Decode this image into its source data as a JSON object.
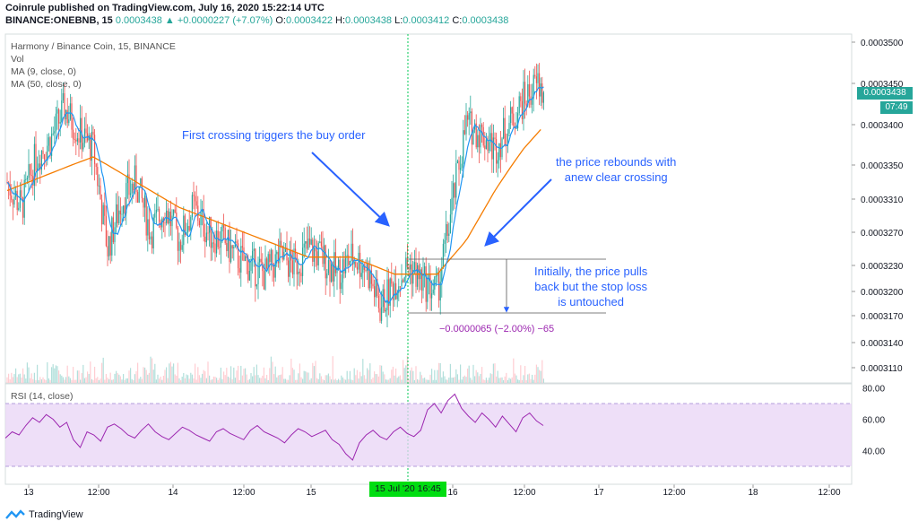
{
  "header": {
    "line1": "Coinrule published on TradingView.com, July 16, 2020 15:22:14 UTC",
    "symbol": "BINANCE:ONEBNB, 15",
    "last": "0.0003438",
    "change": "▲ +0.0000227 (+7.07%)",
    "o_label": "O:",
    "o_value": "0.0003422",
    "h_label": "H:",
    "h_value": "0.0003438",
    "l_label": "L:",
    "l_value": "0.0003412",
    "c_label": "C:",
    "c_value": "0.0003438"
  },
  "legend": {
    "title": "Harmony / Binance Coin, 15, BINANCE",
    "vol": "Vol",
    "ma9": "MA (9, close, 0)",
    "ma50": "MA (50, close, 0)",
    "rsi": "RSI (14, close)"
  },
  "annotations": {
    "buy": "First crossing triggers the buy order",
    "rebound_l1": "the price rebounds with",
    "rebound_l2": "anew clear crossing",
    "pull_l1": "Initially, the price pulls",
    "pull_l2": "back but the stop loss",
    "pull_l3": "is untouched",
    "measure": "−0.0000065 (−2.00%) −65"
  },
  "price_tags": {
    "last_price": "0.0003438",
    "countdown": "07:49"
  },
  "date_tag": "15 Jul '20   16:45",
  "brand": "TradingView",
  "colors": {
    "up": "#26a69a",
    "down": "#ef5350",
    "ma9": "#2196f3",
    "ma50": "#f57c00",
    "rsi": "#9c27b0",
    "annotation": "#2962ff",
    "crosshair": "#00c853"
  },
  "chart_data": [
    {
      "type": "candlestick",
      "title": "Harmony / Binance Coin, 15, BINANCE",
      "y_ticks": [
        "0.0003500",
        "0.0003450",
        "0.0003400",
        "0.0003350",
        "0.0003310",
        "0.0003270",
        "0.0003230",
        "0.0003200",
        "0.0003170",
        "0.0003140",
        "0.0003110"
      ],
      "ylim": [
        0.00031,
        0.00035
      ],
      "x_ticks": [
        "13",
        "12:00",
        "14",
        "12:00",
        "15",
        "12:00",
        "16",
        "12:00",
        "17",
        "12:00",
        "18",
        "12:00"
      ],
      "close_path": [
        [
          0,
          0.000333
        ],
        [
          10,
          0.00033
        ],
        [
          20,
          0.000336
        ],
        [
          30,
          0.000338
        ],
        [
          40,
          0.000342
        ],
        [
          50,
          0.000339
        ],
        [
          60,
          0.000337
        ],
        [
          70,
          0.000325
        ],
        [
          80,
          0.000331
        ],
        [
          90,
          0.000333
        ],
        [
          100,
          0.000327
        ],
        [
          110,
          0.00033
        ],
        [
          120,
          0.000326
        ],
        [
          130,
          0.00033
        ],
        [
          140,
          0.000327
        ],
        [
          150,
          0.000326
        ],
        [
          160,
          0.000324
        ],
        [
          170,
          0.000323
        ],
        [
          180,
          0.000322
        ],
        [
          190,
          0.000324
        ],
        [
          200,
          0.000323
        ],
        [
          210,
          0.000325
        ],
        [
          220,
          0.000324
        ],
        [
          230,
          0.000322
        ],
        [
          240,
          0.000324
        ],
        [
          250,
          0.000323
        ],
        [
          260,
          0.000318
        ],
        [
          270,
          0.000321
        ],
        [
          280,
          0.000323
        ],
        [
          290,
          0.000321
        ],
        [
          300,
          0.00032
        ],
        [
          310,
          0.00033
        ],
        [
          320,
          0.00034
        ],
        [
          330,
          0.000339
        ],
        [
          340,
          0.000337
        ],
        [
          350,
          0.00034
        ],
        [
          360,
          0.000343
        ],
        [
          370,
          0.000345
        ],
        [
          375,
          0.000343
        ]
      ],
      "ma50_path": [
        [
          0,
          0.000332
        ],
        [
          30,
          0.000334
        ],
        [
          60,
          0.000336
        ],
        [
          90,
          0.000333
        ],
        [
          120,
          0.00033
        ],
        [
          150,
          0.000328
        ],
        [
          180,
          0.000326
        ],
        [
          210,
          0.000324
        ],
        [
          240,
          0.000324
        ],
        [
          270,
          0.000322
        ],
        [
          300,
          0.000322
        ],
        [
          320,
          0.000326
        ],
        [
          340,
          0.000332
        ],
        [
          360,
          0.000337
        ],
        [
          375,
          0.00034
        ]
      ],
      "crossings": [
        "15 Jul '20 16:45"
      ],
      "measure": {
        "from": 0.0003235,
        "to": 0.000317,
        "label": "−0.0000065 (−2.00%) −65"
      }
    },
    {
      "type": "line",
      "title": "RSI (14, close)",
      "y_ticks": [
        "80.00",
        "60.00",
        "40.00"
      ],
      "ylim": [
        25,
        80
      ],
      "band": [
        30,
        70
      ],
      "values": [
        48,
        52,
        50,
        56,
        61,
        58,
        63,
        60,
        55,
        58,
        47,
        42,
        52,
        50,
        46,
        55,
        57,
        54,
        50,
        48,
        53,
        57,
        52,
        49,
        47,
        51,
        55,
        53,
        50,
        48,
        46,
        52,
        54,
        51,
        49,
        47,
        53,
        56,
        52,
        50,
        48,
        45,
        50,
        54,
        52,
        49,
        51,
        53,
        47,
        44,
        38,
        34,
        45,
        50,
        53,
        49,
        47,
        52,
        55,
        51,
        49,
        53,
        66,
        70,
        64,
        72,
        76,
        67,
        62,
        58,
        64,
        60,
        55,
        62,
        57,
        52,
        61,
        64,
        59,
        56
      ]
    }
  ]
}
